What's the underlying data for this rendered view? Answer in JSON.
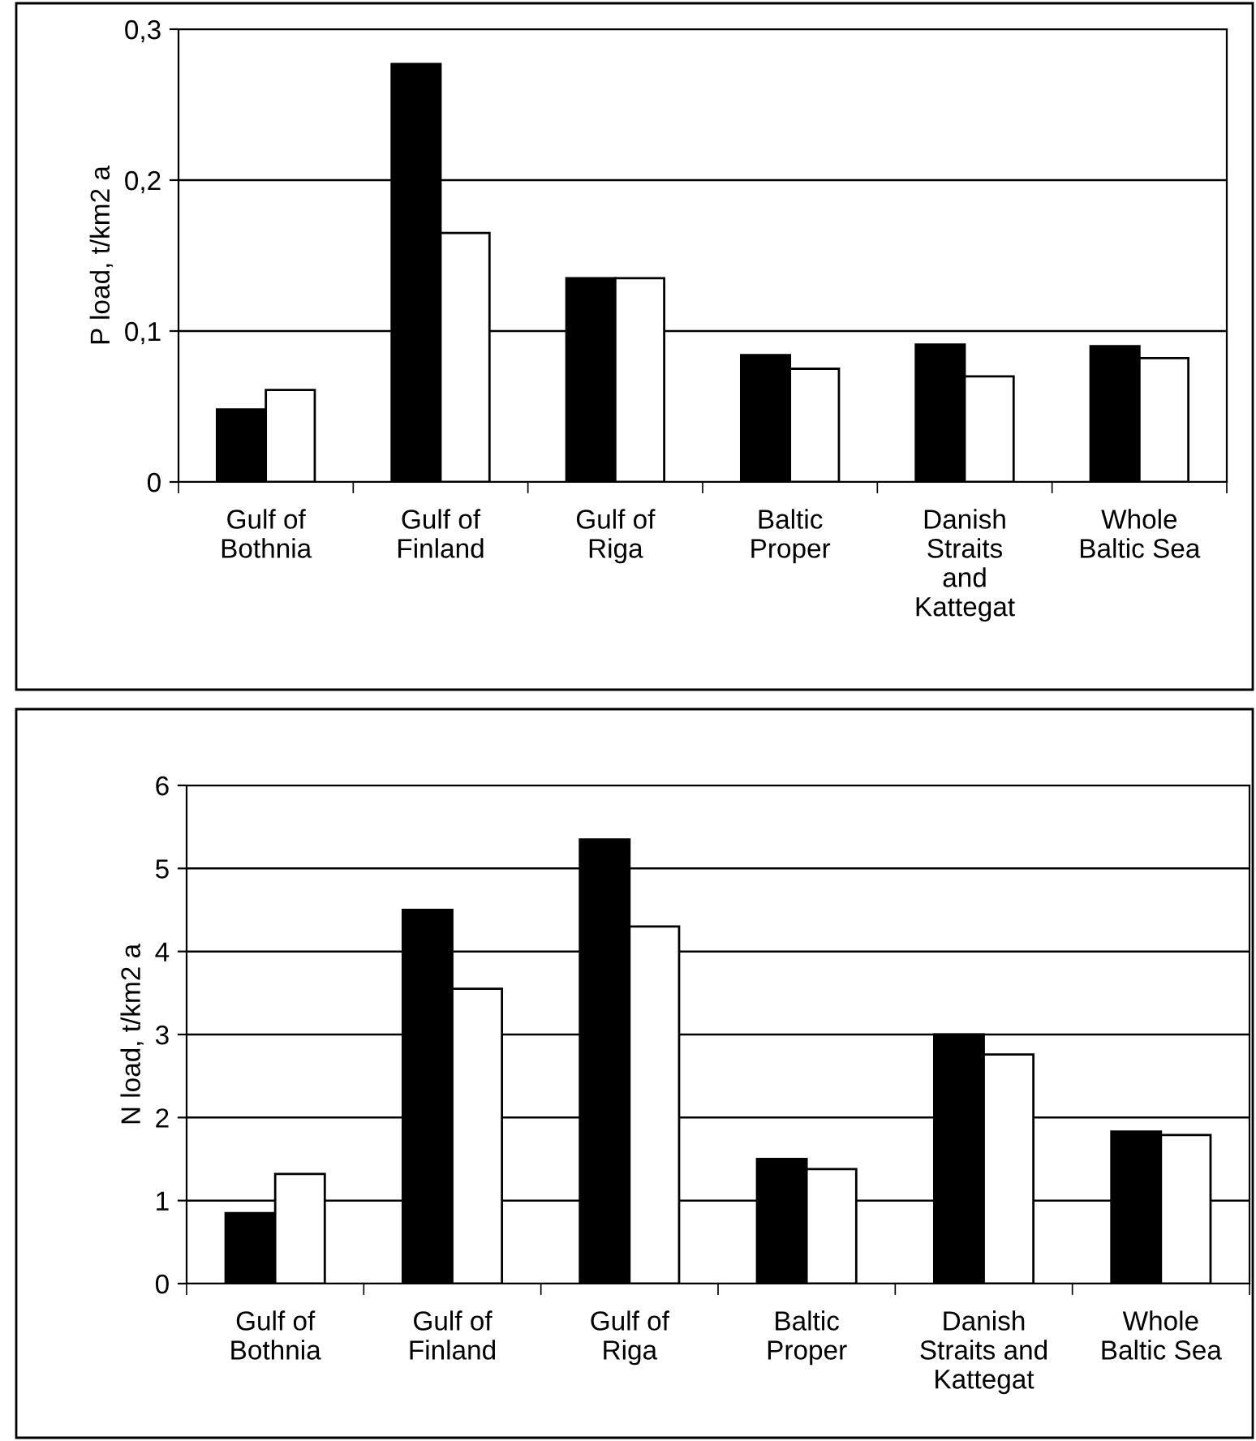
{
  "chart_data": [
    {
      "type": "bar",
      "ylabel": "P load, t/km2 a",
      "categories": [
        "Gulf of\nBothnia",
        "Gulf of\nFinland",
        "Gulf of\nRiga",
        "Baltic\nProper",
        "Danish\nStraits\nand\nKattegat",
        "Whole\nBaltic Sea"
      ],
      "series": [
        {
          "color": "#000000",
          "values": [
            0.048,
            0.277,
            0.135,
            0.084,
            0.091,
            0.09
          ]
        },
        {
          "color": "#ffffff",
          "values": [
            0.061,
            0.165,
            0.135,
            0.075,
            0.07,
            0.082
          ]
        }
      ],
      "ylim": [
        0,
        0.3
      ],
      "yticks": [
        {
          "value": 0,
          "label": "0"
        },
        {
          "value": 0.1,
          "label": "0,1"
        },
        {
          "value": 0.2,
          "label": "0,2"
        },
        {
          "value": 0.3,
          "label": "0,3"
        }
      ],
      "grid": "y"
    },
    {
      "type": "bar",
      "ylabel": "N load, t/km2 a",
      "categories": [
        "Gulf of\nBothnia",
        "Gulf of\nFinland",
        "Gulf of\nRiga",
        "Baltic\nProper",
        "Danish\nStraits and\nKattegat",
        "Whole\nBaltic Sea"
      ],
      "series": [
        {
          "color": "#000000",
          "values": [
            0.85,
            4.5,
            5.35,
            1.5,
            3.0,
            1.83
          ]
        },
        {
          "color": "#ffffff",
          "values": [
            1.32,
            3.55,
            4.3,
            1.38,
            2.76,
            1.79
          ]
        }
      ],
      "ylim": [
        0,
        6
      ],
      "yticks": [
        0,
        1,
        2,
        3,
        4,
        5,
        6
      ],
      "grid": "y"
    }
  ]
}
